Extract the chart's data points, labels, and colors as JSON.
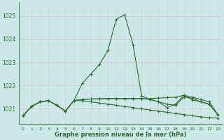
{
  "background_color": "#cde8e8",
  "line_color": "#2d6e2d",
  "xlabel": "Graphe pression niveau de la mer (hPa)",
  "xlim": [
    -0.5,
    23.5
  ],
  "ylim": [
    1020.35,
    1025.6
  ],
  "yticks": [
    1021,
    1022,
    1023,
    1024,
    1025
  ],
  "x_ticks": [
    0,
    1,
    2,
    3,
    4,
    5,
    6,
    7,
    8,
    9,
    10,
    11,
    12,
    13,
    14,
    15,
    16,
    17,
    18,
    19,
    20,
    21,
    22,
    23
  ],
  "series": [
    {
      "y": [
        1020.7,
        1021.1,
        1021.3,
        1021.35,
        1021.15,
        1020.9,
        1021.35,
        1022.1,
        1022.5,
        1022.9,
        1023.5,
        1024.85,
        1025.05,
        1023.75,
        1021.55,
        1021.4,
        1021.3,
        1021.2,
        1021.15,
        1021.5,
        1021.45,
        1021.3,
        1021.2,
        1020.75
      ]
    },
    {
      "y": [
        1020.7,
        1021.1,
        1021.3,
        1021.35,
        1021.15,
        1020.9,
        1021.35,
        1021.35,
        1021.3,
        1021.25,
        1021.2,
        1021.15,
        1021.1,
        1021.05,
        1021.0,
        1020.95,
        1020.9,
        1020.85,
        1020.8,
        1020.75,
        1020.7,
        1020.65,
        1020.62,
        1020.6
      ]
    },
    {
      "y": [
        1020.7,
        1021.1,
        1021.3,
        1021.35,
        1021.15,
        1020.9,
        1021.35,
        1021.4,
        1021.42,
        1021.43,
        1021.44,
        1021.44,
        1021.44,
        1021.44,
        1021.44,
        1021.44,
        1021.46,
        1021.48,
        1021.5,
        1021.58,
        1021.5,
        1021.4,
        1021.3,
        1020.75
      ]
    },
    {
      "y": [
        1020.7,
        1021.1,
        1021.3,
        1021.35,
        1021.15,
        1020.9,
        1021.35,
        1021.4,
        1021.42,
        1021.43,
        1021.44,
        1021.44,
        1021.44,
        1021.44,
        1021.44,
        1021.4,
        1021.3,
        1021.05,
        1021.2,
        1021.58,
        1021.38,
        1021.3,
        1021.18,
        1020.75
      ]
    }
  ]
}
